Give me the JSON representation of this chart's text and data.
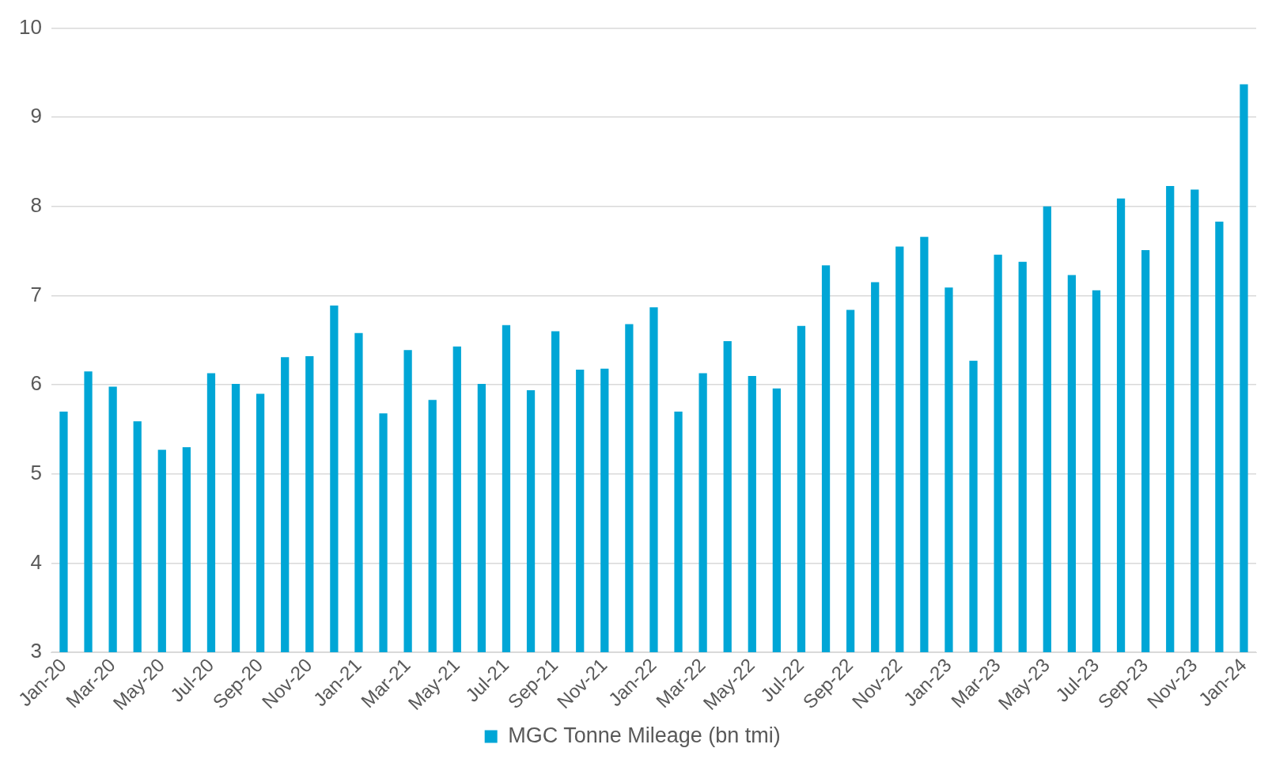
{
  "chart_data": {
    "type": "bar",
    "categories": [
      "Jan-20",
      null,
      "Mar-20",
      null,
      "May-20",
      null,
      "Jul-20",
      null,
      "Sep-20",
      null,
      "Nov-20",
      null,
      "Jan-21",
      null,
      "Mar-21",
      null,
      "May-21",
      null,
      "Jul-21",
      null,
      "Sep-21",
      null,
      "Nov-21",
      null,
      "Jan-22",
      null,
      "Mar-22",
      null,
      "May-22",
      null,
      "Jul-22",
      null,
      "Sep-22",
      null,
      "Nov-22",
      null,
      "Jan-23",
      null,
      "Mar-23",
      null,
      "May-23",
      null,
      "Jul-23",
      null,
      "Sep-23",
      null,
      "Nov-23",
      null,
      "Jan-24"
    ],
    "series": [
      {
        "name": "MGC Tonne Mileage (bn tmi)",
        "color": "#00a6d6",
        "values": [
          5.7,
          6.15,
          5.98,
          5.59,
          5.27,
          5.3,
          6.13,
          6.01,
          5.9,
          6.31,
          6.32,
          6.89,
          6.58,
          5.68,
          6.39,
          5.83,
          6.43,
          6.01,
          6.67,
          5.94,
          6.6,
          6.17,
          6.18,
          6.68,
          6.87,
          5.7,
          6.13,
          6.49,
          6.1,
          5.96,
          6.66,
          7.34,
          6.84,
          7.15,
          7.55,
          7.66,
          7.09,
          6.27,
          7.46,
          7.38,
          8.0,
          7.23,
          7.06,
          8.09,
          7.51,
          8.23,
          8.19,
          7.83,
          9.37
        ]
      }
    ],
    "ylim": [
      3,
      10
    ],
    "yticks": [
      3,
      4,
      5,
      6,
      7,
      8,
      9,
      10
    ],
    "grid": "y",
    "legend": "bottom"
  }
}
